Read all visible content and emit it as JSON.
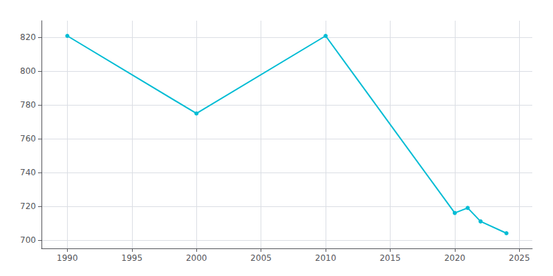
{
  "chart_data": {
    "type": "line",
    "x": [
      1990,
      2000,
      2010,
      2020,
      2021,
      2022,
      2024
    ],
    "values": [
      821,
      775,
      821,
      716,
      719,
      711,
      704
    ],
    "color": "#00bcd4",
    "marker": "circle",
    "line_style": "solid",
    "xlim": [
      1988,
      2026
    ],
    "xticks": [
      1990,
      1995,
      2000,
      2005,
      2010,
      2015,
      2020,
      2025
    ],
    "ylim": [
      695,
      830
    ],
    "yticks": [
      700,
      720,
      740,
      760,
      780,
      800,
      820
    ],
    "grid": true
  }
}
